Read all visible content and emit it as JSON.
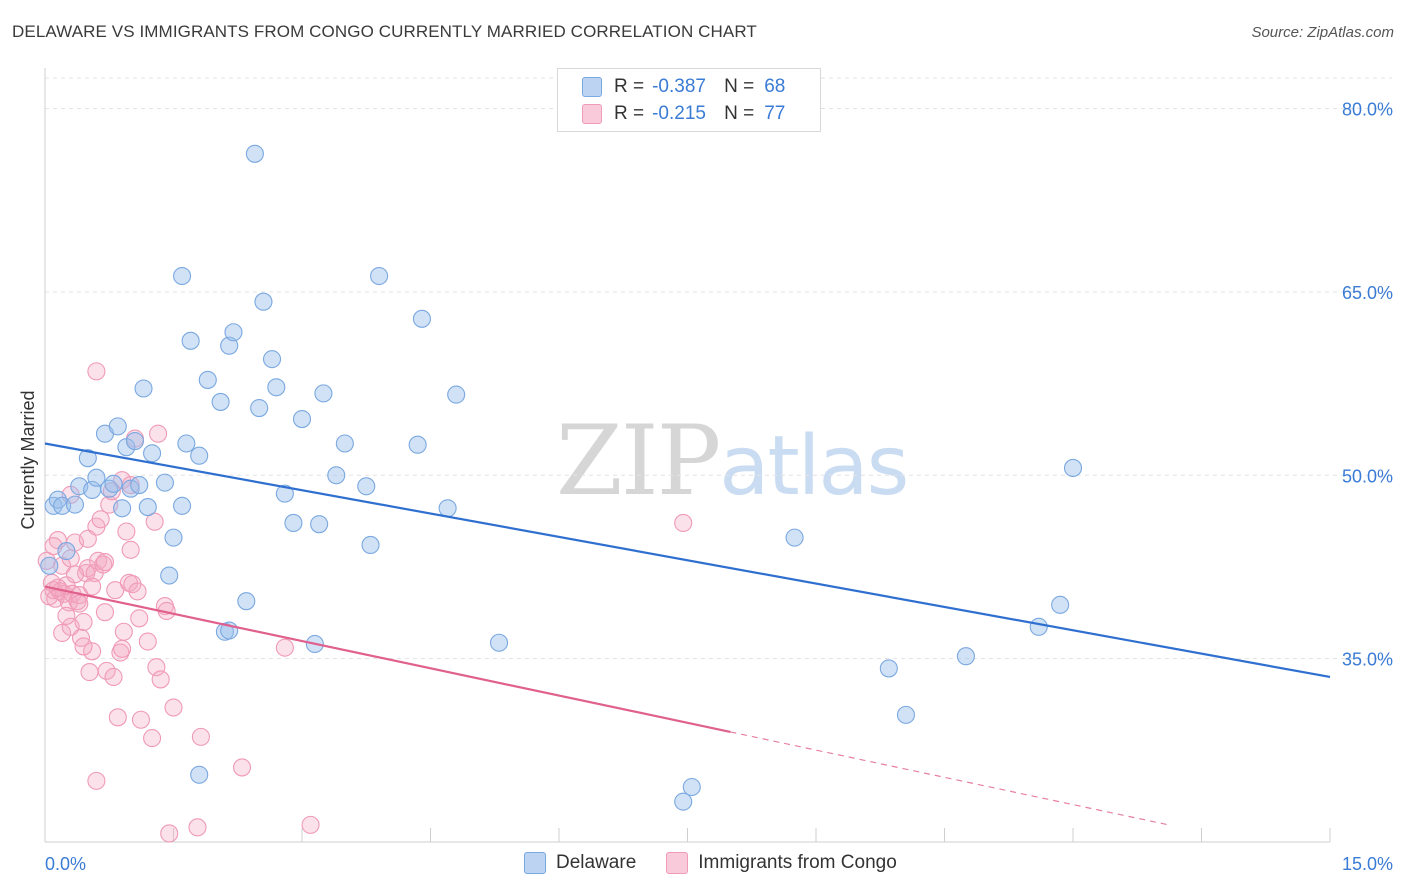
{
  "title": "DELAWARE VS IMMIGRANTS FROM CONGO CURRENTLY MARRIED CORRELATION CHART",
  "source": "Source: ZipAtlas.com",
  "legend": {
    "r_label": "R =",
    "n_label": "N =",
    "series": [
      {
        "name": "Delaware",
        "r": "-0.387",
        "n": "68"
      },
      {
        "name": "Immigrants from Congo",
        "r": "-0.215",
        "n": "77"
      }
    ]
  },
  "watermark": {
    "part1": "ZIP",
    "part2": "atlas"
  },
  "chart_data": {
    "type": "scatter",
    "title": "DELAWARE VS IMMIGRANTS FROM CONGO CURRENTLY MARRIED CORRELATION CHART",
    "xlabel": "",
    "ylabel": "Currently Married",
    "xlim": [
      0,
      15
    ],
    "ylim": [
      20,
      82.5
    ],
    "x_tick_labels": [
      "0.0%",
      "15.0%"
    ],
    "y_ticks": [
      35,
      50,
      65,
      80
    ],
    "y_tick_labels": [
      "35.0%",
      "50.0%",
      "65.0%",
      "80.0%"
    ],
    "colors": {
      "Delaware": "#7aa8e0",
      "Immigrants from Congo": "#f09ab6",
      "delaware_line": "#2f6fd0",
      "congo_line": "#e0608e"
    },
    "series": [
      {
        "name": "Delaware",
        "trend": {
          "x": [
            0,
            15
          ],
          "y": [
            52.6,
            33.5
          ],
          "dashed_from": null
        },
        "points": [
          {
            "x": 0.05,
            "y": 42.6
          },
          {
            "x": 0.1,
            "y": 47.5
          },
          {
            "x": 0.15,
            "y": 48.0
          },
          {
            "x": 0.2,
            "y": 47.5
          },
          {
            "x": 0.25,
            "y": 43.8
          },
          {
            "x": 0.35,
            "y": 47.6
          },
          {
            "x": 0.4,
            "y": 49.1
          },
          {
            "x": 0.5,
            "y": 51.4
          },
          {
            "x": 0.55,
            "y": 48.8
          },
          {
            "x": 0.6,
            "y": 49.8
          },
          {
            "x": 0.7,
            "y": 53.4
          },
          {
            "x": 0.75,
            "y": 48.9
          },
          {
            "x": 0.8,
            "y": 49.3
          },
          {
            "x": 0.85,
            "y": 54.0
          },
          {
            "x": 0.9,
            "y": 47.3
          },
          {
            "x": 0.95,
            "y": 52.3
          },
          {
            "x": 1.0,
            "y": 48.9
          },
          {
            "x": 1.05,
            "y": 52.8
          },
          {
            "x": 1.1,
            "y": 49.2
          },
          {
            "x": 1.15,
            "y": 57.1
          },
          {
            "x": 1.2,
            "y": 47.4
          },
          {
            "x": 1.25,
            "y": 51.8
          },
          {
            "x": 1.4,
            "y": 49.4
          },
          {
            "x": 1.45,
            "y": 41.8
          },
          {
            "x": 1.5,
            "y": 44.9
          },
          {
            "x": 1.6,
            "y": 66.3
          },
          {
            "x": 1.6,
            "y": 47.5
          },
          {
            "x": 1.65,
            "y": 52.6
          },
          {
            "x": 1.7,
            "y": 61.0
          },
          {
            "x": 1.8,
            "y": 51.6
          },
          {
            "x": 1.9,
            "y": 57.8
          },
          {
            "x": 2.05,
            "y": 56.0
          },
          {
            "x": 2.1,
            "y": 37.2
          },
          {
            "x": 2.15,
            "y": 60.6
          },
          {
            "x": 2.2,
            "y": 61.7
          },
          {
            "x": 2.35,
            "y": 39.7
          },
          {
            "x": 2.45,
            "y": 76.3
          },
          {
            "x": 2.5,
            "y": 55.5
          },
          {
            "x": 2.55,
            "y": 64.2
          },
          {
            "x": 2.65,
            "y": 59.5
          },
          {
            "x": 2.7,
            "y": 57.2
          },
          {
            "x": 2.8,
            "y": 48.5
          },
          {
            "x": 2.9,
            "y": 46.1
          },
          {
            "x": 3.0,
            "y": 54.6
          },
          {
            "x": 3.2,
            "y": 46.0
          },
          {
            "x": 3.25,
            "y": 56.7
          },
          {
            "x": 3.4,
            "y": 50.0
          },
          {
            "x": 3.5,
            "y": 52.6
          },
          {
            "x": 3.75,
            "y": 49.1
          },
          {
            "x": 3.8,
            "y": 44.3
          },
          {
            "x": 3.9,
            "y": 66.3
          },
          {
            "x": 4.35,
            "y": 52.5
          },
          {
            "x": 4.4,
            "y": 62.8
          },
          {
            "x": 4.7,
            "y": 47.3
          },
          {
            "x": 4.8,
            "y": 56.6
          },
          {
            "x": 5.3,
            "y": 36.3
          },
          {
            "x": 7.45,
            "y": 23.3
          },
          {
            "x": 7.55,
            "y": 24.5
          },
          {
            "x": 8.75,
            "y": 44.9
          },
          {
            "x": 9.85,
            "y": 34.2
          },
          {
            "x": 10.05,
            "y": 30.4
          },
          {
            "x": 10.75,
            "y": 35.2
          },
          {
            "x": 11.6,
            "y": 37.6
          },
          {
            "x": 11.85,
            "y": 39.4
          },
          {
            "x": 12.0,
            "y": 50.6
          },
          {
            "x": 1.8,
            "y": 25.5
          },
          {
            "x": 2.15,
            "y": 37.3
          },
          {
            "x": 3.15,
            "y": 36.2
          }
        ]
      },
      {
        "name": "Immigrants from Congo",
        "trend": {
          "x": [
            0,
            15
          ],
          "y": [
            40.9,
            18.6
          ],
          "dashed_from": 8.0
        },
        "points": [
          {
            "x": 0.02,
            "y": 43.0
          },
          {
            "x": 0.05,
            "y": 40.1
          },
          {
            "x": 0.08,
            "y": 41.2
          },
          {
            "x": 0.1,
            "y": 40.6
          },
          {
            "x": 0.12,
            "y": 39.9
          },
          {
            "x": 0.15,
            "y": 44.7
          },
          {
            "x": 0.18,
            "y": 40.5
          },
          {
            "x": 0.2,
            "y": 37.1
          },
          {
            "x": 0.22,
            "y": 40.3
          },
          {
            "x": 0.25,
            "y": 41.0
          },
          {
            "x": 0.28,
            "y": 39.6
          },
          {
            "x": 0.3,
            "y": 48.4
          },
          {
            "x": 0.3,
            "y": 37.6
          },
          {
            "x": 0.32,
            "y": 40.3
          },
          {
            "x": 0.35,
            "y": 44.5
          },
          {
            "x": 0.38,
            "y": 39.7
          },
          {
            "x": 0.4,
            "y": 40.2
          },
          {
            "x": 0.42,
            "y": 36.7
          },
          {
            "x": 0.45,
            "y": 38.0
          },
          {
            "x": 0.48,
            "y": 42.0
          },
          {
            "x": 0.5,
            "y": 42.4
          },
          {
            "x": 0.52,
            "y": 33.9
          },
          {
            "x": 0.55,
            "y": 35.6
          },
          {
            "x": 0.58,
            "y": 42.0
          },
          {
            "x": 0.6,
            "y": 45.8
          },
          {
            "x": 0.62,
            "y": 43.0
          },
          {
            "x": 0.65,
            "y": 46.4
          },
          {
            "x": 0.68,
            "y": 42.7
          },
          {
            "x": 0.7,
            "y": 38.8
          },
          {
            "x": 0.72,
            "y": 34.0
          },
          {
            "x": 0.75,
            "y": 47.6
          },
          {
            "x": 0.78,
            "y": 48.7
          },
          {
            "x": 0.8,
            "y": 33.5
          },
          {
            "x": 0.82,
            "y": 40.6
          },
          {
            "x": 0.85,
            "y": 30.2
          },
          {
            "x": 0.88,
            "y": 35.5
          },
          {
            "x": 0.9,
            "y": 49.6
          },
          {
            "x": 0.92,
            "y": 37.2
          },
          {
            "x": 0.95,
            "y": 45.4
          },
          {
            "x": 0.98,
            "y": 41.2
          },
          {
            "x": 1.0,
            "y": 43.9
          },
          {
            "x": 1.02,
            "y": 41.1
          },
          {
            "x": 1.05,
            "y": 53.0
          },
          {
            "x": 1.08,
            "y": 40.5
          },
          {
            "x": 1.1,
            "y": 38.3
          },
          {
            "x": 1.12,
            "y": 30.0
          },
          {
            "x": 1.2,
            "y": 36.4
          },
          {
            "x": 1.25,
            "y": 28.5
          },
          {
            "x": 1.28,
            "y": 46.2
          },
          {
            "x": 1.3,
            "y": 34.3
          },
          {
            "x": 1.32,
            "y": 53.4
          },
          {
            "x": 1.35,
            "y": 33.3
          },
          {
            "x": 1.4,
            "y": 39.3
          },
          {
            "x": 1.42,
            "y": 38.9
          },
          {
            "x": 1.45,
            "y": 20.7
          },
          {
            "x": 1.5,
            "y": 31.0
          },
          {
            "x": 1.78,
            "y": 21.2
          },
          {
            "x": 1.82,
            "y": 28.6
          },
          {
            "x": 2.3,
            "y": 26.1
          },
          {
            "x": 2.8,
            "y": 35.9
          },
          {
            "x": 3.1,
            "y": 21.4
          },
          {
            "x": 7.45,
            "y": 46.1
          },
          {
            "x": 0.6,
            "y": 58.5
          },
          {
            "x": 0.1,
            "y": 44.2
          },
          {
            "x": 0.2,
            "y": 42.6
          },
          {
            "x": 0.4,
            "y": 39.5
          },
          {
            "x": 0.55,
            "y": 40.9
          },
          {
            "x": 0.7,
            "y": 42.9
          },
          {
            "x": 0.9,
            "y": 35.8
          },
          {
            "x": 1.0,
            "y": 49.2
          },
          {
            "x": 0.6,
            "y": 25.0
          },
          {
            "x": 0.5,
            "y": 44.8
          },
          {
            "x": 0.3,
            "y": 43.2
          },
          {
            "x": 0.15,
            "y": 40.8
          },
          {
            "x": 0.35,
            "y": 41.9
          },
          {
            "x": 0.45,
            "y": 36.0
          },
          {
            "x": 0.25,
            "y": 38.5
          }
        ]
      }
    ]
  }
}
